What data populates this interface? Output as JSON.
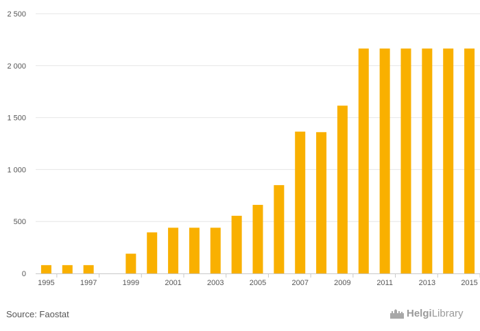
{
  "chart_data": {
    "type": "bar",
    "categories": [
      "1995",
      "1996",
      "1997",
      "1998",
      "1999",
      "2000",
      "2001",
      "2002",
      "2003",
      "2004",
      "2005",
      "2006",
      "2007",
      "2008",
      "2009",
      "2010",
      "2011",
      "2012",
      "2013",
      "2014",
      "2015"
    ],
    "x_tick_labels": [
      "1995",
      "1997",
      "1999",
      "2001",
      "2003",
      "2005",
      "2007",
      "2009",
      "2011",
      "2013",
      "2015"
    ],
    "values": [
      80,
      80,
      80,
      0,
      190,
      395,
      440,
      440,
      440,
      555,
      660,
      850,
      1365,
      1360,
      1615,
      2165,
      2165,
      2165,
      2165,
      2165,
      2165
    ],
    "y_ticks": [
      0,
      500,
      1000,
      1500,
      2000,
      2500
    ],
    "y_tick_labels": [
      "0",
      "500",
      "1 000",
      "1 500",
      "2 000",
      "2 500"
    ],
    "ylim": [
      0,
      2500
    ],
    "grid": true,
    "bar_color": "#f9b000"
  },
  "footer": {
    "source": "Source: Faostat",
    "logo_helgi": "Helgi",
    "logo_library": "Library"
  }
}
